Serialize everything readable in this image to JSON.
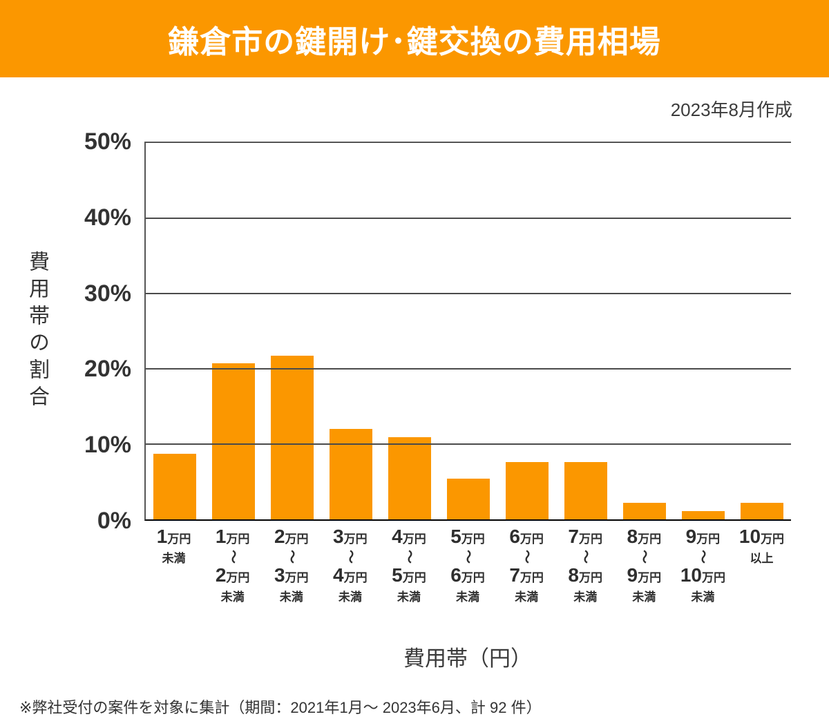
{
  "header": {
    "title": "鎌倉市の鍵開け･鍵交換の費用相場"
  },
  "meta": {
    "created": "2023年8月作成"
  },
  "colors": {
    "accent": "#FB9700",
    "banner_text": "#FFFFFF",
    "text": "#333333",
    "grid": "#4a4a4a",
    "axis": "#555555",
    "baseline": "#000000"
  },
  "chart_data": {
    "type": "bar",
    "title": "鎌倉市の鍵開け･鍵交換の費用相場",
    "xlabel": "費用帯（円）",
    "ylabel": "費用帯の割合",
    "ylim": [
      0,
      50
    ],
    "yticks": [
      0,
      10,
      20,
      30,
      40,
      50
    ],
    "ytick_suffix": "%",
    "grid": true,
    "legend": null,
    "bar_color": "#FB9700",
    "categories": [
      {
        "from_num": "1",
        "from_unit": "万円",
        "qualifier": "未満"
      },
      {
        "from_num": "1",
        "from_unit": "万円",
        "tilde": "～",
        "to_num": "2",
        "to_unit": "万円",
        "qualifier": "未満"
      },
      {
        "from_num": "2",
        "from_unit": "万円",
        "tilde": "～",
        "to_num": "3",
        "to_unit": "万円",
        "qualifier": "未満"
      },
      {
        "from_num": "3",
        "from_unit": "万円",
        "tilde": "～",
        "to_num": "4",
        "to_unit": "万円",
        "qualifier": "未満"
      },
      {
        "from_num": "4",
        "from_unit": "万円",
        "tilde": "～",
        "to_num": "5",
        "to_unit": "万円",
        "qualifier": "未満"
      },
      {
        "from_num": "5",
        "from_unit": "万円",
        "tilde": "～",
        "to_num": "6",
        "to_unit": "万円",
        "qualifier": "未満"
      },
      {
        "from_num": "6",
        "from_unit": "万円",
        "tilde": "～",
        "to_num": "7",
        "to_unit": "万円",
        "qualifier": "未満"
      },
      {
        "from_num": "7",
        "from_unit": "万円",
        "tilde": "～",
        "to_num": "8",
        "to_unit": "万円",
        "qualifier": "未満"
      },
      {
        "from_num": "8",
        "from_unit": "万円",
        "tilde": "～",
        "to_num": "9",
        "to_unit": "万円",
        "qualifier": "未満"
      },
      {
        "from_num": "9",
        "from_unit": "万円",
        "tilde": "～",
        "to_num": "10",
        "to_unit": "万円",
        "qualifier": "未満"
      },
      {
        "from_num": "10",
        "from_unit": "万円",
        "qualifier": "以上"
      }
    ],
    "category_labels_flat": [
      "1万円未満",
      "1万円～2万円未満",
      "2万円～3万円未満",
      "3万円～4万円未満",
      "4万円～5万円未満",
      "5万円～6万円未満",
      "6万円～7万円未満",
      "7万円～8万円未満",
      "8万円～9万円未満",
      "9万円～10万円未満",
      "10万円以上"
    ],
    "values": [
      8.7,
      20.7,
      21.7,
      12.0,
      10.9,
      5.4,
      7.6,
      7.6,
      2.2,
      1.1,
      2.2
    ]
  },
  "footnote": "※弊社受付の案件を対象に集計（期間：2021年1月～ 2023年6月、計 92 件）"
}
